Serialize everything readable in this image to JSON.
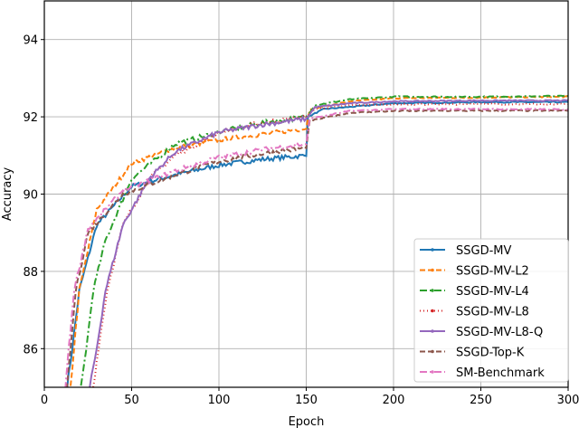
{
  "chart_data": {
    "type": "line",
    "title": "",
    "xlabel": "Epoch",
    "ylabel": "Accuracy",
    "xlim": [
      0,
      300
    ],
    "ylim": [
      85,
      95
    ],
    "xticks": [
      0,
      50,
      100,
      150,
      200,
      250,
      300
    ],
    "yticks": [
      86,
      88,
      90,
      92,
      94
    ],
    "grid": true,
    "legend_position": "lower right",
    "series": [
      {
        "name": "SSGD-MV",
        "color": "#1f77b4",
        "dash": "",
        "points": [
          [
            13,
            85
          ],
          [
            16,
            86
          ],
          [
            20,
            87.5
          ],
          [
            30,
            89.2
          ],
          [
            50,
            90.2
          ],
          [
            75,
            90.5
          ],
          [
            100,
            90.75
          ],
          [
            125,
            90.9
          ],
          [
            150,
            91.0
          ],
          [
            151,
            92.0
          ],
          [
            160,
            92.2
          ],
          [
            200,
            92.35
          ],
          [
            250,
            92.38
          ],
          [
            300,
            92.38
          ]
        ]
      },
      {
        "name": "SSGD-MV-L2",
        "color": "#ff7f0e",
        "dash": "6,3",
        "points": [
          [
            15,
            85
          ],
          [
            17,
            86
          ],
          [
            20,
            87.5
          ],
          [
            30,
            89.6
          ],
          [
            50,
            90.8
          ],
          [
            75,
            91.2
          ],
          [
            100,
            91.4
          ],
          [
            125,
            91.55
          ],
          [
            150,
            91.7
          ],
          [
            152,
            92.2
          ],
          [
            175,
            92.4
          ],
          [
            200,
            92.48
          ],
          [
            250,
            92.5
          ],
          [
            300,
            92.52
          ]
        ]
      },
      {
        "name": "SSGD-MV-L4",
        "color": "#2ca02c",
        "dash": "8,3,2,3",
        "points": [
          [
            21,
            85
          ],
          [
            24,
            86
          ],
          [
            28,
            87.5
          ],
          [
            35,
            88.8
          ],
          [
            50,
            90.4
          ],
          [
            75,
            91.3
          ],
          [
            100,
            91.6
          ],
          [
            125,
            91.85
          ],
          [
            150,
            92.0
          ],
          [
            155,
            92.3
          ],
          [
            175,
            92.45
          ],
          [
            200,
            92.52
          ],
          [
            250,
            92.52
          ],
          [
            300,
            92.54
          ]
        ]
      },
      {
        "name": "SSGD-MV-L8",
        "color": "#d62728",
        "dash": "1,3",
        "points": [
          [
            28,
            85
          ],
          [
            31,
            86
          ],
          [
            36,
            87.5
          ],
          [
            45,
            89.2
          ],
          [
            60,
            90.4
          ],
          [
            75,
            91.0
          ],
          [
            100,
            91.6
          ],
          [
            125,
            91.85
          ],
          [
            150,
            92.0
          ],
          [
            155,
            92.2
          ],
          [
            175,
            92.3
          ],
          [
            200,
            92.32
          ],
          [
            250,
            92.33
          ],
          [
            300,
            92.33
          ]
        ]
      },
      {
        "name": "SSGD-MV-L8-Q",
        "color": "#9467bd",
        "dash": "",
        "points": [
          [
            26,
            85
          ],
          [
            30,
            86
          ],
          [
            35,
            87.5
          ],
          [
            45,
            89.2
          ],
          [
            60,
            90.4
          ],
          [
            75,
            91.1
          ],
          [
            100,
            91.6
          ],
          [
            125,
            91.8
          ],
          [
            150,
            91.95
          ],
          [
            155,
            92.25
          ],
          [
            175,
            92.35
          ],
          [
            200,
            92.4
          ],
          [
            250,
            92.42
          ],
          [
            300,
            92.42
          ]
        ]
      },
      {
        "name": "SSGD-Top-K",
        "color": "#8c564b",
        "dash": "6,3",
        "points": [
          [
            13,
            85
          ],
          [
            15,
            86
          ],
          [
            18,
            87.5
          ],
          [
            25,
            89.0
          ],
          [
            45,
            90.0
          ],
          [
            75,
            90.5
          ],
          [
            100,
            90.85
          ],
          [
            125,
            91.05
          ],
          [
            150,
            91.2
          ],
          [
            152,
            91.9
          ],
          [
            175,
            92.1
          ],
          [
            200,
            92.15
          ],
          [
            250,
            92.16
          ],
          [
            300,
            92.16
          ]
        ]
      },
      {
        "name": "SM-Benchmark",
        "color": "#e377c2",
        "dash": "8,3,2,3",
        "points": [
          [
            12,
            85
          ],
          [
            14,
            86
          ],
          [
            17,
            87.5
          ],
          [
            25,
            89.1
          ],
          [
            45,
            90.1
          ],
          [
            75,
            90.6
          ],
          [
            100,
            90.95
          ],
          [
            125,
            91.15
          ],
          [
            150,
            91.3
          ],
          [
            152,
            91.95
          ],
          [
            175,
            92.15
          ],
          [
            200,
            92.2
          ],
          [
            250,
            92.2
          ],
          [
            300,
            92.19
          ]
        ]
      }
    ]
  },
  "axes": {
    "xlabel": "Epoch",
    "ylabel": "Accuracy",
    "xtick_labels": [
      "0",
      "50",
      "100",
      "150",
      "200",
      "250",
      "300"
    ],
    "ytick_labels": [
      "86",
      "88",
      "90",
      "92",
      "94"
    ]
  },
  "legend": {
    "items": [
      "SSGD-MV",
      "SSGD-MV-L2",
      "SSGD-MV-L4",
      "SSGD-MV-L8",
      "SSGD-MV-L8-Q",
      "SSGD-Top-K",
      "SM-Benchmark"
    ]
  }
}
